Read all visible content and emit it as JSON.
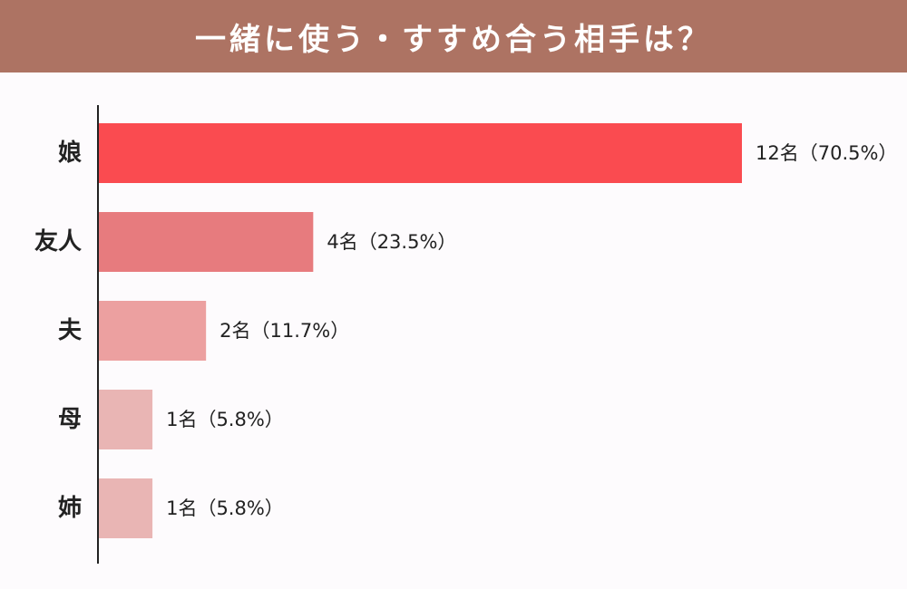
{
  "header": {
    "title": "一緒に使う・すすめ合う相手は？"
  },
  "chart_data": {
    "type": "bar",
    "orientation": "horizontal",
    "title": "一緒に使う・すすめ合う相手は？",
    "categories": [
      "娘",
      "友人",
      "夫",
      "母",
      "姉"
    ],
    "values": [
      12,
      4,
      2,
      1,
      1
    ],
    "value_labels": [
      "12名（70.5%）",
      "4名（23.5%）",
      "2名（11.7%）",
      "1名（5.8%）",
      "1名（5.8%）"
    ],
    "colors": [
      "#fa4b50",
      "#e77b7e",
      "#eca0a0",
      "#e9b5b4",
      "#e9b5b4"
    ],
    "xlim": [
      0,
      12
    ],
    "grid": false,
    "legend": "none"
  }
}
